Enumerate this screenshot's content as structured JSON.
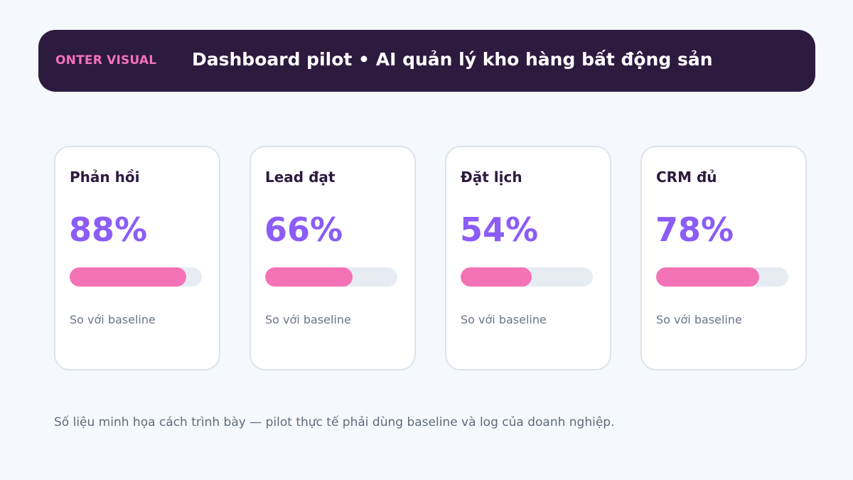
{
  "header": {
    "brand": "ONTER VISUAL",
    "title": "Dashboard pilot • AI quản lý kho hàng bất động sản"
  },
  "colors": {
    "header_bg": "#2c1a3f",
    "brand": "#f472b6",
    "value": "#8b5cf6",
    "bar_fill": "#f472b6",
    "bar_track": "#e7ecf3"
  },
  "metrics": [
    {
      "label": "Phản hồi",
      "value_text": "88%",
      "progress": 0.88,
      "note": "So với baseline"
    },
    {
      "label": "Lead đạt",
      "value_text": "66%",
      "progress": 0.66,
      "note": "So với baseline"
    },
    {
      "label": "Đặt lịch",
      "value_text": "54%",
      "progress": 0.54,
      "note": "So với baseline"
    },
    {
      "label": "CRM đủ",
      "value_text": "78%",
      "progress": 0.78,
      "note": "So với baseline"
    }
  ],
  "footnote": "Số liệu minh họa cách trình bày — pilot thực tế phải dùng baseline và log của doanh nghiệp."
}
